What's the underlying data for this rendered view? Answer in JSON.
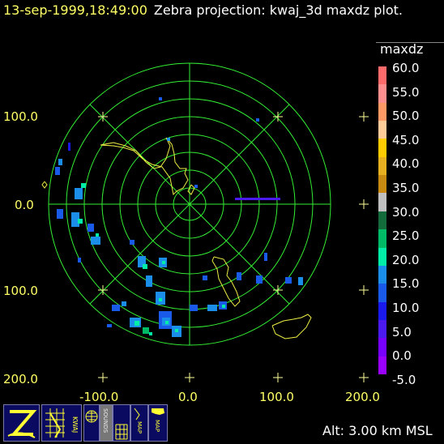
{
  "header": {
    "timestamp": "13-sep-1999,18:49:00",
    "description": "Zebra projection: kwaj_3d maxdz plot."
  },
  "legend": {
    "title": "maxdz",
    "colors": [
      "#ff6a6a",
      "#ff8e8e",
      "#ff9966",
      "#ffcc99",
      "#ffcc00",
      "#e6b020",
      "#c88a10",
      "#c0c0c0",
      "#136b3c",
      "#00bb66",
      "#00eea8",
      "#1a8ee8",
      "#1a5ae8",
      "#1a1aee",
      "#4a1aee",
      "#7700ff",
      "#9900ff"
    ],
    "labels": [
      "60.0",
      "55.0",
      "50.0",
      "45.0",
      "40.0",
      "35.0",
      "30.0",
      "25.0",
      "20.0",
      "15.0",
      "10.0",
      "5.0",
      "0.0",
      "-5.0"
    ]
  },
  "axes": {
    "y_labels": [
      "100.0",
      "0.0",
      "100.0",
      "200.0"
    ],
    "x_labels": [
      "-100.0",
      "0.0",
      "100.0",
      "200.0"
    ]
  },
  "toolbar": {
    "icons": [
      "zebra-logo-icon",
      "kwaj-radar-icon",
      "globe-icon",
      "sounds-icon",
      "grid-icon",
      "map-icon",
      "us-map-icon"
    ],
    "kwaj_label": "KWAJ",
    "sounds_label": "SOUNDS",
    "map_label": "MAP"
  },
  "status": {
    "altitude": "Alt: 3.00 km MSL"
  }
}
